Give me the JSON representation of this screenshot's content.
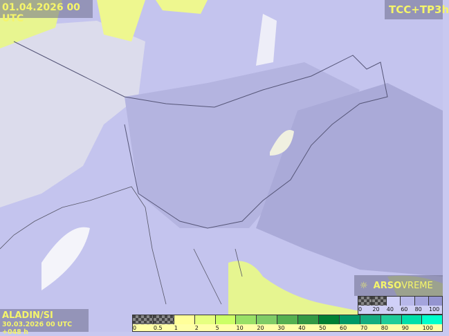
{
  "header": {
    "valid_time": "01.04.2026 00 UTC",
    "product": "TCC+TP3h"
  },
  "footer": {
    "model": "ALADIN/SI",
    "run": "30.03.2026 00 UTC +048 h"
  },
  "brand": {
    "name_bold": "ARSO",
    "name_light": "VREME",
    "icon": "sun-cloud-icon"
  },
  "precip_legend": {
    "colors": [
      "checker",
      "checker",
      "#ffff99",
      "#e6ff80",
      "#ccff66",
      "#99e066",
      "#80cc66",
      "#55b050",
      "#339944",
      "#008033",
      "#009966",
      "#14ad80",
      "#20cc99",
      "#00dfaa",
      "#00ffcc"
    ],
    "labels": [
      "0",
      "0.5",
      "1",
      "2",
      "5",
      "10",
      "20",
      "30",
      "40",
      "50",
      "60",
      "70",
      "80",
      "90",
      "100"
    ]
  },
  "cloud_legend": {
    "colors": [
      "checker",
      "checker",
      "#d0d0f8",
      "#b8b8ea",
      "#a4a4dc",
      "#9494d0"
    ],
    "labels": [
      "0",
      "20",
      "40",
      "60",
      "80",
      "100"
    ]
  },
  "colors": {
    "label_text": "#f5f56a",
    "sea": "#c4c4ee",
    "cloud_dense": "#a8a8d8",
    "land_clear": "#e6e6f0"
  }
}
